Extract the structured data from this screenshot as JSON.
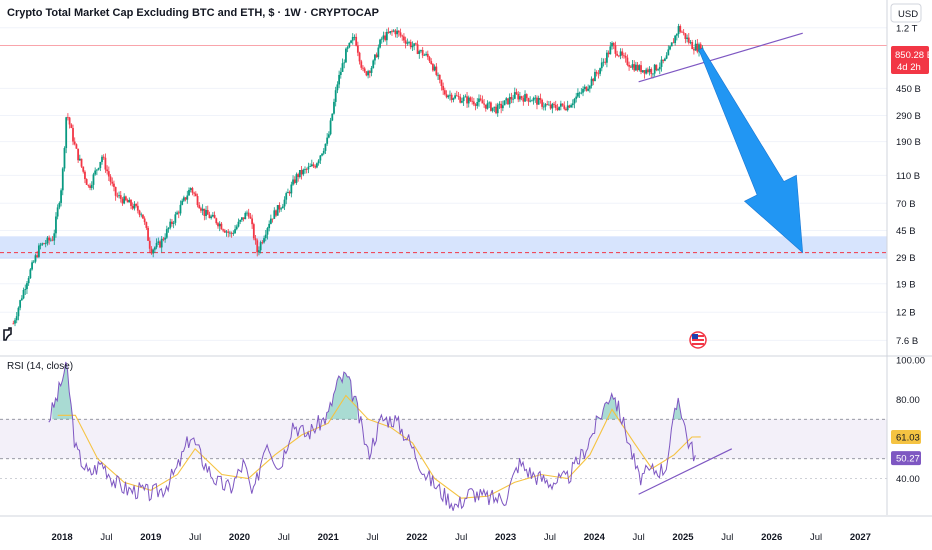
{
  "header": {
    "title": "Crypto Total Market Cap Excluding BTC and ETH, $ · 1W · CRYPTOCAP",
    "currency": "USD"
  },
  "price_tag": {
    "value": "850.28 B",
    "countdown": "4d 2h",
    "color": "#f23645"
  },
  "colors": {
    "up": "#089981",
    "down": "#f23645",
    "support_band": "#bcd2fb",
    "trendline": "#7e57c2",
    "arrow": "#2196f3",
    "rsi_line": "#7e57c2",
    "rsi_ma": "#f5c342",
    "rsi_band": "#7e57c2"
  },
  "icons": {
    "logo": "tradingview-flag-icon",
    "flag": "us-flag-icon"
  },
  "rsi": {
    "label": "RSI (14, close)",
    "ticks": [
      "100.00",
      "80.00",
      "40.00"
    ],
    "tag_ma": "61.03",
    "tag_rsi": "50.27"
  },
  "chart_data": [
    {
      "type": "candlestick",
      "title": "Crypto Total Market Cap Excluding BTC and ETH, $ · 1W · CRYPTOCAP",
      "yscale": "log",
      "ylim": [
        6.0,
        1500
      ],
      "yunits": "billions USD",
      "y_tick_labels": [
        "1.2 T",
        "450 B",
        "290 B",
        "190 B",
        "110 B",
        "70 B",
        "45 B",
        "29 B",
        "19 B",
        "12 B",
        "7.6 B"
      ],
      "y_tick_values": [
        1200,
        450,
        290,
        190,
        110,
        70,
        45,
        29,
        19,
        12,
        7.6
      ],
      "x_tick_labels": [
        "2018",
        "Jul",
        "2019",
        "Jul",
        "2020",
        "Jul",
        "2021",
        "Jul",
        "2022",
        "Jul",
        "2023",
        "Jul",
        "2024",
        "Jul",
        "2025",
        "Jul",
        "2026",
        "Jul",
        "2027"
      ],
      "x_tick_values": [
        2018.0,
        2018.5,
        2019.0,
        2019.5,
        2020.0,
        2020.5,
        2021.0,
        2021.5,
        2022.0,
        2022.5,
        2023.0,
        2023.5,
        2024.0,
        2024.5,
        2025.0,
        2025.5,
        2026.0,
        2026.5,
        2027.0
      ],
      "xlim": [
        2017.3,
        2027.3
      ],
      "price_anchors": [
        [
          2017.45,
          10
        ],
        [
          2017.6,
          20
        ],
        [
          2017.75,
          35
        ],
        [
          2017.9,
          40
        ],
        [
          2018.0,
          100
        ],
        [
          2018.05,
          310
        ],
        [
          2018.15,
          170
        ],
        [
          2018.3,
          90
        ],
        [
          2018.45,
          150
        ],
        [
          2018.6,
          80
        ],
        [
          2018.75,
          70
        ],
        [
          2018.9,
          60
        ],
        [
          2019.0,
          33
        ],
        [
          2019.1,
          36
        ],
        [
          2019.3,
          60
        ],
        [
          2019.45,
          90
        ],
        [
          2019.6,
          60
        ],
        [
          2019.75,
          52
        ],
        [
          2019.9,
          42
        ],
        [
          2020.1,
          62
        ],
        [
          2020.2,
          32
        ],
        [
          2020.35,
          55
        ],
        [
          2020.5,
          72
        ],
        [
          2020.65,
          110
        ],
        [
          2020.85,
          130
        ],
        [
          2021.0,
          200
        ],
        [
          2021.1,
          480
        ],
        [
          2021.2,
          800
        ],
        [
          2021.3,
          1050
        ],
        [
          2021.4,
          560
        ],
        [
          2021.5,
          650
        ],
        [
          2021.6,
          1000
        ],
        [
          2021.75,
          1150
        ],
        [
          2021.9,
          950
        ],
        [
          2022.0,
          850
        ],
        [
          2022.15,
          720
        ],
        [
          2022.3,
          420
        ],
        [
          2022.5,
          380
        ],
        [
          2022.7,
          360
        ],
        [
          2022.9,
          320
        ],
        [
          2023.1,
          400
        ],
        [
          2023.3,
          380
        ],
        [
          2023.5,
          330
        ],
        [
          2023.7,
          340
        ],
        [
          2023.9,
          450
        ],
        [
          2024.05,
          600
        ],
        [
          2024.2,
          900
        ],
        [
          2024.35,
          700
        ],
        [
          2024.5,
          620
        ],
        [
          2024.65,
          600
        ],
        [
          2024.8,
          700
        ],
        [
          2024.95,
          1200
        ],
        [
          2025.1,
          900
        ],
        [
          2025.22,
          850
        ]
      ],
      "last_price": 850.28,
      "support_zone": [
        28.5,
        41
      ],
      "support_line": 31.5,
      "resistance_line": 900,
      "trendline": [
        [
          2024.5,
          500
        ],
        [
          2026.35,
          1100
        ]
      ],
      "arrow": {
        "from": [
          2025.2,
          850
        ],
        "to": [
          2026.35,
          31.5
        ]
      }
    },
    {
      "type": "line",
      "title": "RSI (14, close)",
      "ylim": [
        22,
        100
      ],
      "y_tick_values": [
        100,
        80,
        40
      ],
      "band": [
        50,
        70
      ],
      "series": [
        {
          "name": "RSI (14, close)",
          "points": [
            [
              2017.85,
              70
            ],
            [
              2017.95,
              82
            ],
            [
              2018.05,
              98
            ],
            [
              2018.15,
              55
            ],
            [
              2018.3,
              42
            ],
            [
              2018.45,
              48
            ],
            [
              2018.6,
              38
            ],
            [
              2018.75,
              34
            ],
            [
              2018.9,
              34
            ],
            [
              2019.0,
              32
            ],
            [
              2019.15,
              35
            ],
            [
              2019.3,
              45
            ],
            [
              2019.45,
              62
            ],
            [
              2019.6,
              48
            ],
            [
              2019.75,
              38
            ],
            [
              2019.9,
              35
            ],
            [
              2020.05,
              48
            ],
            [
              2020.15,
              30
            ],
            [
              2020.3,
              60
            ],
            [
              2020.45,
              45
            ],
            [
              2020.6,
              68
            ],
            [
              2020.75,
              62
            ],
            [
              2021.0,
              72
            ],
            [
              2021.1,
              88
            ],
            [
              2021.2,
              92
            ],
            [
              2021.3,
              80
            ],
            [
              2021.45,
              52
            ],
            [
              2021.6,
              70
            ],
            [
              2021.75,
              70
            ],
            [
              2021.9,
              60
            ],
            [
              2022.1,
              42
            ],
            [
              2022.3,
              32
            ],
            [
              2022.45,
              26
            ],
            [
              2022.6,
              33
            ],
            [
              2022.8,
              30
            ],
            [
              2023.0,
              30
            ],
            [
              2023.15,
              48
            ],
            [
              2023.3,
              42
            ],
            [
              2023.5,
              38
            ],
            [
              2023.7,
              40
            ],
            [
              2023.9,
              55
            ],
            [
              2024.05,
              70
            ],
            [
              2024.2,
              85
            ],
            [
              2024.35,
              65
            ],
            [
              2024.5,
              40
            ],
            [
              2024.65,
              44
            ],
            [
              2024.8,
              45
            ],
            [
              2024.95,
              82
            ],
            [
              2025.05,
              60
            ],
            [
              2025.15,
              50
            ]
          ]
        },
        {
          "name": "RSI-based MA",
          "points": [
            [
              2017.95,
              72
            ],
            [
              2018.15,
              72
            ],
            [
              2018.4,
              50
            ],
            [
              2018.7,
              38
            ],
            [
              2019.0,
              34
            ],
            [
              2019.3,
              42
            ],
            [
              2019.5,
              55
            ],
            [
              2019.8,
              42
            ],
            [
              2020.1,
              40
            ],
            [
              2020.4,
              52
            ],
            [
              2020.7,
              62
            ],
            [
              2021.0,
              68
            ],
            [
              2021.2,
              82
            ],
            [
              2021.45,
              70
            ],
            [
              2021.7,
              66
            ],
            [
              2021.95,
              58
            ],
            [
              2022.2,
              40
            ],
            [
              2022.5,
              30
            ],
            [
              2022.8,
              31
            ],
            [
              2023.1,
              38
            ],
            [
              2023.4,
              42
            ],
            [
              2023.7,
              40
            ],
            [
              2023.95,
              52
            ],
            [
              2024.2,
              75
            ],
            [
              2024.45,
              58
            ],
            [
              2024.65,
              45
            ],
            [
              2024.9,
              52
            ],
            [
              2025.1,
              61
            ],
            [
              2025.2,
              61.03
            ]
          ]
        }
      ],
      "trendline": [
        [
          2024.5,
          32
        ],
        [
          2025.55,
          55
        ]
      ]
    }
  ]
}
